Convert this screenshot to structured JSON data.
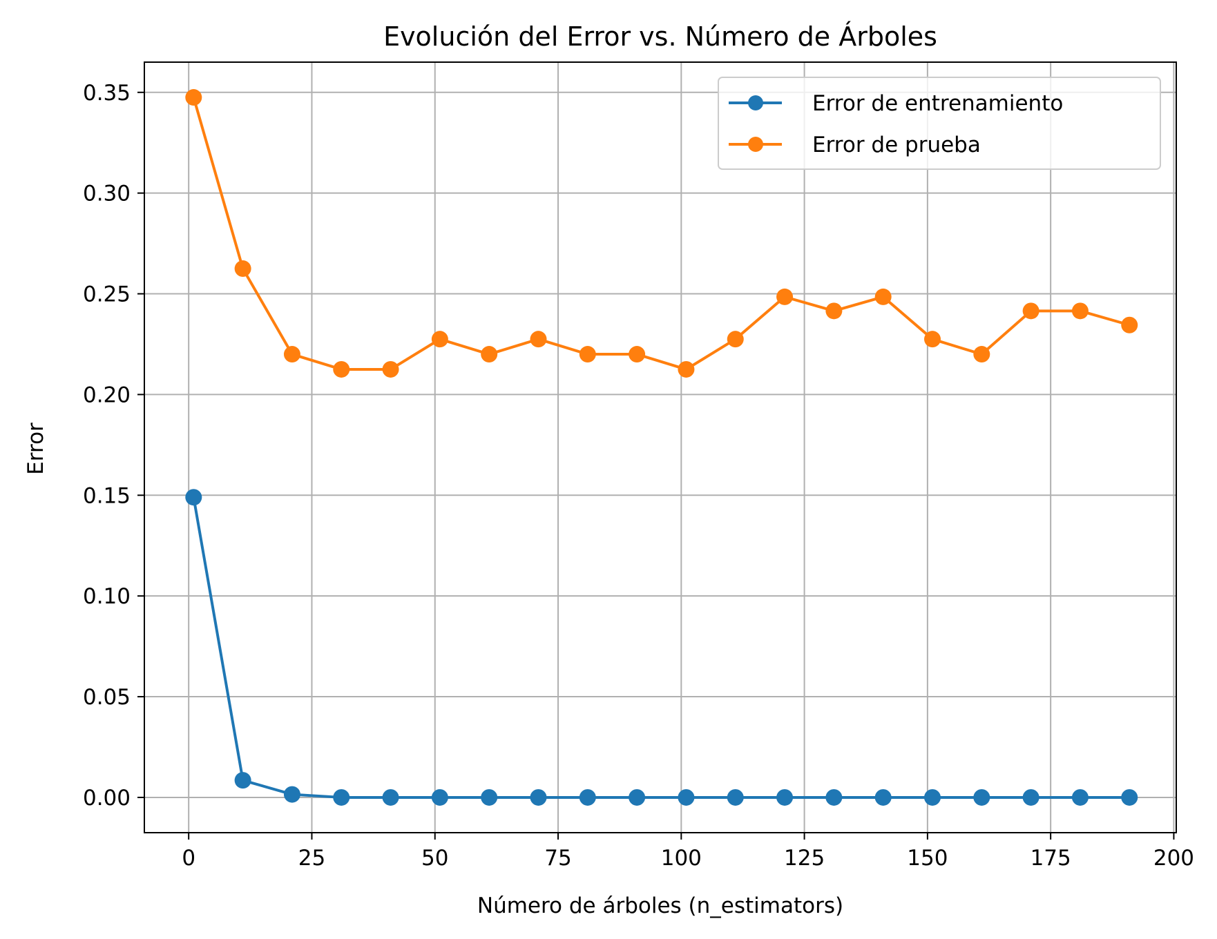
{
  "chart_data": {
    "type": "line",
    "title": "Evolución del Error vs. Número de Árboles",
    "xlabel": "Número de árboles (n_estimators)",
    "ylabel": "Error",
    "xlim": [
      -9,
      200.5
    ],
    "ylim": [
      -0.0175,
      0.365
    ],
    "xticks": [
      0,
      25,
      50,
      75,
      100,
      125,
      150,
      175,
      200
    ],
    "xtick_labels": [
      "0",
      "25",
      "50",
      "75",
      "100",
      "125",
      "150",
      "175",
      "200"
    ],
    "yticks": [
      0.0,
      0.05,
      0.1,
      0.15,
      0.2,
      0.25,
      0.3,
      0.35
    ],
    "ytick_labels": [
      "0.00",
      "0.05",
      "0.10",
      "0.15",
      "0.20",
      "0.25",
      "0.30",
      "0.35"
    ],
    "grid": true,
    "legend_position": "top-right",
    "x": [
      1,
      11,
      21,
      31,
      41,
      51,
      61,
      71,
      81,
      91,
      101,
      111,
      121,
      131,
      141,
      151,
      161,
      171,
      181,
      191
    ],
    "series": [
      {
        "name": "Error de entrenamiento",
        "color": "#1f77b4",
        "marker": "circle",
        "values": [
          0.149,
          0.0085,
          0.0015,
          0.0,
          0.0,
          0.0,
          0.0,
          0.0,
          0.0,
          0.0,
          0.0,
          0.0,
          0.0,
          0.0,
          0.0,
          0.0,
          0.0,
          0.0,
          0.0,
          0.0
        ]
      },
      {
        "name": "Error de prueba",
        "color": "#ff7f0e",
        "marker": "circle",
        "values": [
          0.3475,
          0.2625,
          0.22,
          0.2125,
          0.2125,
          0.2275,
          0.22,
          0.2275,
          0.22,
          0.22,
          0.2125,
          0.2275,
          0.2485,
          0.2415,
          0.2485,
          0.2275,
          0.22,
          0.2415,
          0.2415,
          0.2345
        ]
      }
    ]
  }
}
